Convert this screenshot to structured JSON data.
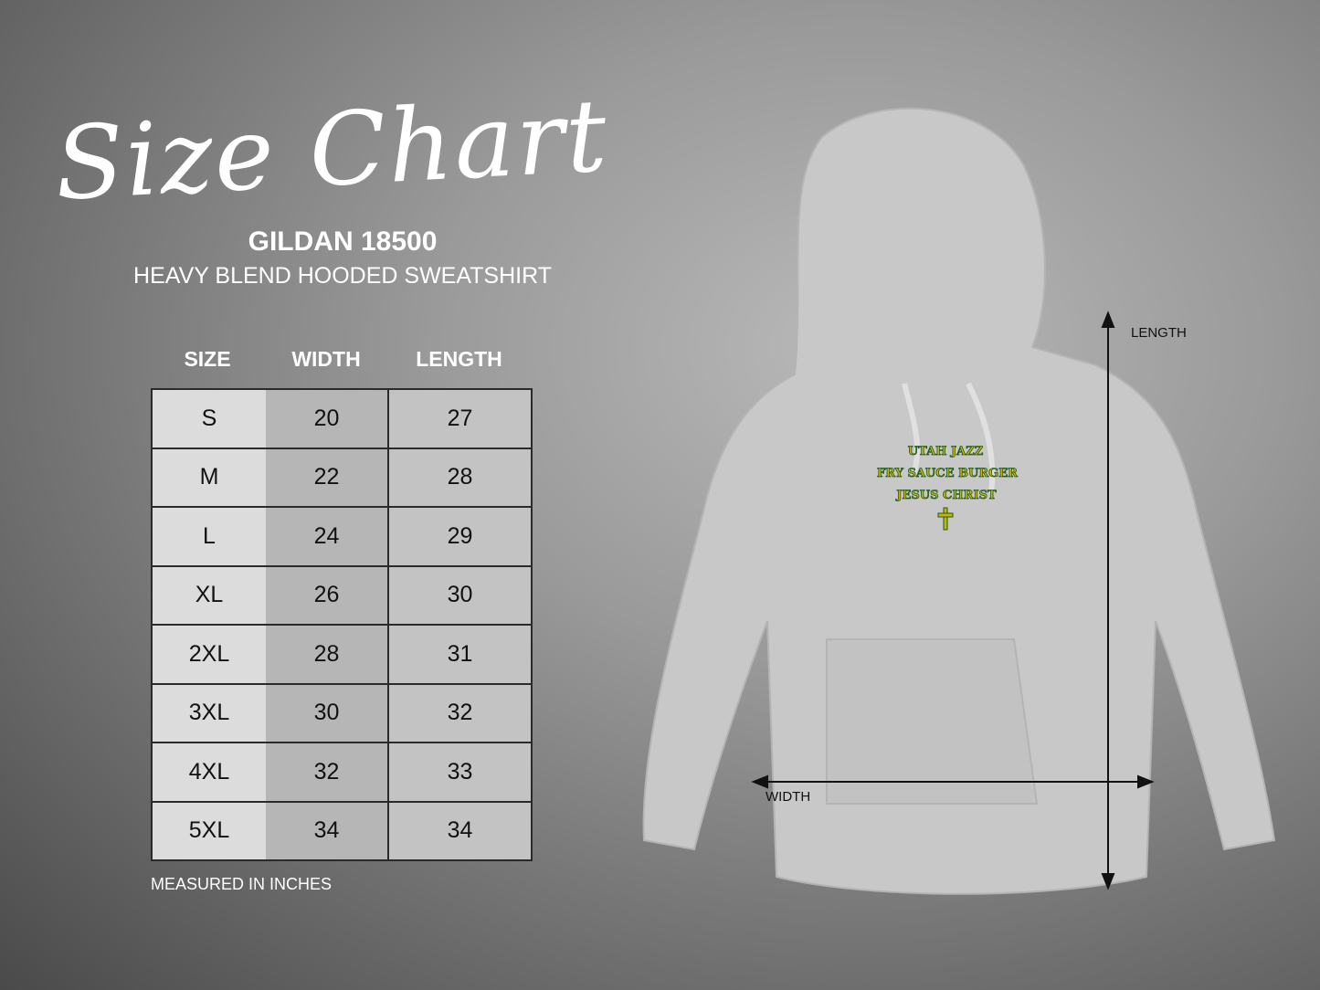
{
  "title": "Size Chart",
  "product": {
    "model": "GILDAN 18500",
    "name": "HEAVY BLEND HOODED SWEATSHIRT"
  },
  "table": {
    "headers": [
      "SIZE",
      "WIDTH",
      "LENGTH"
    ],
    "rows": [
      [
        "S",
        "20",
        "27"
      ],
      [
        "M",
        "22",
        "28"
      ],
      [
        "L",
        "24",
        "29"
      ],
      [
        "XL",
        "26",
        "30"
      ],
      [
        "2XL",
        "28",
        "31"
      ],
      [
        "3XL",
        "30",
        "32"
      ],
      [
        "4XL",
        "32",
        "33"
      ],
      [
        "5XL",
        "34",
        "34"
      ]
    ]
  },
  "note": "MEASURED IN INCHES",
  "diagram": {
    "length_label": "LENGTH",
    "width_label": "WIDTH"
  },
  "print": {
    "lines": [
      "UTAH JAZZ",
      "FRY SAUCE BURGER",
      "JESUS CHRIST"
    ],
    "icon": "cross-icon",
    "text_color": "#c9b400",
    "outline_color": "#1e5a1e"
  }
}
